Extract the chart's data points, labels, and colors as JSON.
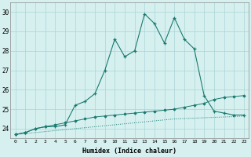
{
  "xlabel": "Humidex (Indice chaleur)",
  "x": [
    0,
    1,
    2,
    3,
    4,
    5,
    6,
    7,
    8,
    9,
    10,
    11,
    12,
    13,
    14,
    15,
    16,
    17,
    18,
    19,
    20,
    21,
    22,
    23
  ],
  "line1": [
    23.7,
    23.8,
    24.0,
    24.1,
    24.1,
    24.2,
    25.2,
    25.4,
    25.8,
    27.0,
    28.6,
    27.7,
    28.0,
    29.9,
    29.4,
    28.4,
    29.7,
    28.6,
    28.1,
    25.7,
    24.9,
    24.8,
    24.7,
    24.7
  ],
  "line2": [
    23.7,
    23.8,
    24.0,
    24.1,
    24.2,
    24.3,
    24.4,
    24.5,
    24.6,
    24.65,
    24.7,
    24.75,
    24.8,
    24.85,
    24.9,
    24.95,
    25.0,
    25.1,
    25.2,
    25.3,
    25.5,
    25.6,
    25.65,
    25.7
  ],
  "line3": [
    23.7,
    23.75,
    23.8,
    23.85,
    23.9,
    23.95,
    24.0,
    24.05,
    24.1,
    24.15,
    24.2,
    24.25,
    24.3,
    24.35,
    24.4,
    24.45,
    24.5,
    24.52,
    24.54,
    24.56,
    24.58,
    24.6,
    24.62,
    24.65
  ],
  "line_color": "#1a7a6e",
  "bg_color": "#d6f0f0",
  "grid_color": "#aad4d4",
  "ylim": [
    23.5,
    30.5
  ],
  "yticks": [
    24,
    25,
    26,
    27,
    28,
    29,
    30
  ],
  "xlim": [
    -0.5,
    23.5
  ]
}
